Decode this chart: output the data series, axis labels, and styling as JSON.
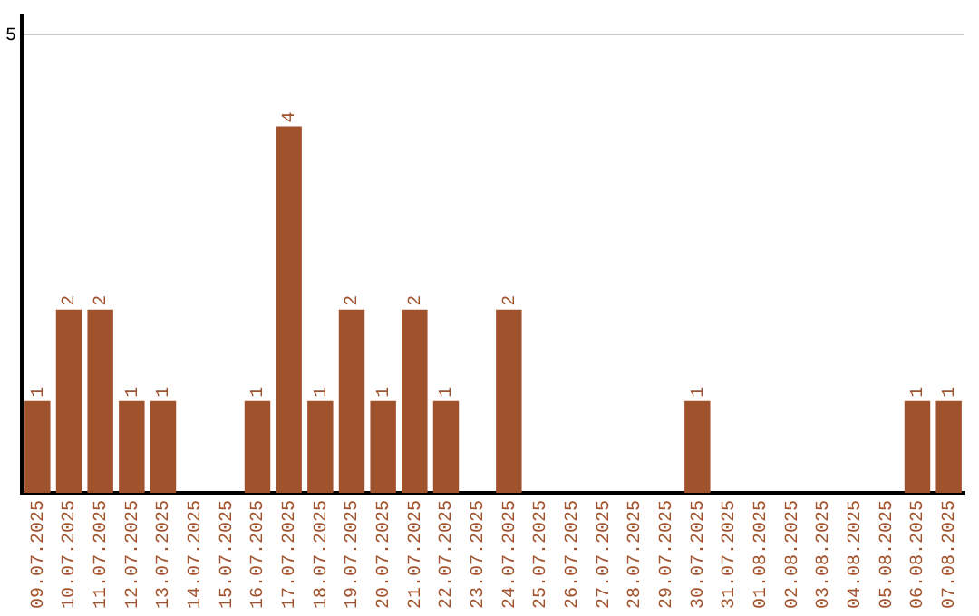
{
  "chart_data": {
    "type": "bar",
    "categories": [
      "09.07.2025",
      "10.07.2025",
      "11.07.2025",
      "12.07.2025",
      "13.07.2025",
      "14.07.2025",
      "15.07.2025",
      "16.07.2025",
      "17.07.2025",
      "18.07.2025",
      "19.07.2025",
      "20.07.2025",
      "21.07.2025",
      "22.07.2025",
      "23.07.2025",
      "24.07.2025",
      "25.07.2025",
      "26.07.2025",
      "27.07.2025",
      "28.07.2025",
      "29.07.2025",
      "30.07.2025",
      "31.07.2025",
      "01.08.2025",
      "02.08.2025",
      "03.08.2025",
      "04.08.2025",
      "05.08.2025",
      "06.08.2025",
      "07.08.2025"
    ],
    "values": [
      1,
      2,
      2,
      1,
      1,
      0,
      0,
      1,
      4,
      1,
      2,
      1,
      2,
      1,
      0,
      2,
      0,
      0,
      0,
      0,
      0,
      1,
      0,
      0,
      0,
      0,
      0,
      0,
      1,
      1
    ],
    "value_labels": [
      "1",
      "2",
      "2",
      "1",
      "1",
      null,
      null,
      "1",
      "4",
      "1",
      "2",
      "1",
      "2",
      "1",
      null,
      "2",
      null,
      null,
      null,
      null,
      null,
      "1",
      null,
      null,
      null,
      null,
      null,
      null,
      "1",
      "1"
    ],
    "color": "#a0522d",
    "ylim": [
      0,
      5.2
    ],
    "yticks": [
      5
    ],
    "grid": "y",
    "legend": false
  }
}
